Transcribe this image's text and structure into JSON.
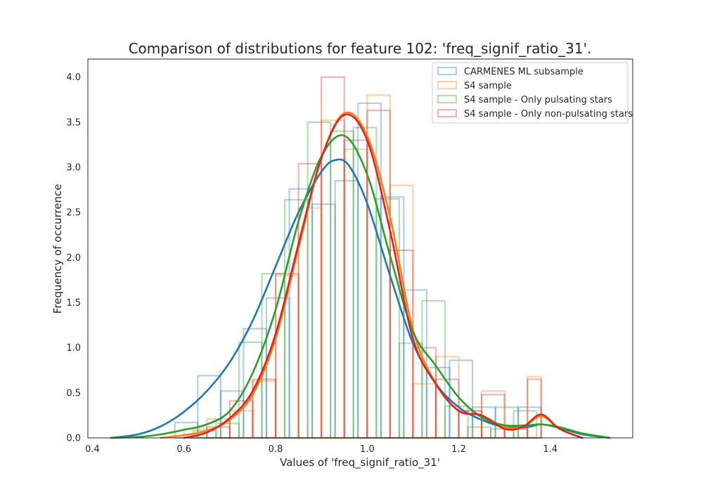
{
  "chart_data": {
    "type": "histogram",
    "title": "Comparison of distributions for feature 102: 'freq_signif_ratio_31'.",
    "xlabel": "Values of 'freq_signif_ratio_31'",
    "ylabel": "Frequency of occurrence",
    "xlim": [
      0.39,
      1.58
    ],
    "ylim": [
      0,
      4.2
    ],
    "xticks": [
      "0.4",
      "0.6",
      "0.8",
      "1.0",
      "1.2",
      "1.4"
    ],
    "yticks": [
      "0.0",
      "0.5",
      "1.0",
      "1.5",
      "2.0",
      "2.5",
      "3.0",
      "3.5",
      "4.0"
    ],
    "grid": false,
    "legend_position": "top-right",
    "series": [
      {
        "name": "CARMENES ML subsample",
        "color": "#1f77b4",
        "hist": {
          "edges": [
            0.58,
            0.63,
            0.68,
            0.73,
            0.78,
            0.83,
            0.88,
            0.93,
            0.98,
            1.03,
            1.08,
            1.13,
            1.18,
            1.23,
            1.28,
            1.33,
            1.38
          ],
          "heights": [
            0.17,
            0.69,
            0.52,
            1.21,
            1.55,
            2.76,
            2.59,
            2.85,
            3.71,
            2.67,
            1.64,
            0.78,
            0.86,
            0.34,
            0.34,
            0.34
          ]
        },
        "kde": {
          "x": [
            0.44,
            0.5,
            0.55,
            0.6,
            0.65,
            0.7,
            0.75,
            0.8,
            0.85,
            0.9,
            0.93,
            0.96,
            1.0,
            1.05,
            1.1,
            1.15,
            1.2,
            1.25,
            1.3,
            1.35,
            1.38,
            1.42,
            1.47,
            1.53
          ],
          "y": [
            0.0,
            0.04,
            0.13,
            0.29,
            0.52,
            0.84,
            1.3,
            1.9,
            2.5,
            2.95,
            3.08,
            3.02,
            2.6,
            1.8,
            1.05,
            0.6,
            0.34,
            0.2,
            0.12,
            0.12,
            0.15,
            0.11,
            0.04,
            0.0
          ]
        }
      },
      {
        "name": "S4 sample",
        "color": "#ff7f0e",
        "hist": {
          "edges": [
            0.6,
            0.65,
            0.7,
            0.75,
            0.8,
            0.85,
            0.9,
            0.95,
            1.0,
            1.05,
            1.1,
            1.15,
            1.2,
            1.25,
            1.3,
            1.35,
            1.38
          ],
          "heights": [
            0.1,
            0.21,
            0.3,
            0.63,
            1.8,
            2.55,
            3.52,
            3.2,
            3.8,
            2.8,
            0.6,
            0.9,
            0.3,
            0.52,
            0.1,
            0.68
          ]
        },
        "kde": {
          "x": [
            0.55,
            0.6,
            0.65,
            0.7,
            0.75,
            0.8,
            0.85,
            0.9,
            0.95,
            1.0,
            1.05,
            1.1,
            1.15,
            1.2,
            1.25,
            1.3,
            1.34,
            1.38,
            1.42,
            1.47
          ],
          "y": [
            0.0,
            0.03,
            0.08,
            0.2,
            0.48,
            1.1,
            2.1,
            3.1,
            3.6,
            3.35,
            2.45,
            1.2,
            0.6,
            0.3,
            0.25,
            0.12,
            0.12,
            0.24,
            0.1,
            0.0
          ]
        }
      },
      {
        "name": "S4 sample - Only pulsating stars",
        "color": "#2ca02c",
        "hist": {
          "edges": [
            0.62,
            0.67,
            0.72,
            0.77,
            0.82,
            0.87,
            0.92,
            0.97,
            1.02,
            1.07,
            1.12,
            1.17,
            1.22,
            1.27,
            1.32,
            1.37
          ],
          "heights": [
            0.08,
            0.16,
            1.06,
            1.82,
            2.64,
            3.5,
            3.4,
            3.44,
            2.65,
            1.05,
            1.52,
            0.35,
            0.12,
            0.1,
            0.3
          ]
        },
        "kde": {
          "x": [
            0.44,
            0.5,
            0.55,
            0.6,
            0.65,
            0.7,
            0.75,
            0.8,
            0.85,
            0.9,
            0.95,
            1.0,
            1.05,
            1.1,
            1.15,
            1.2,
            1.25,
            1.3,
            1.35,
            1.38,
            1.42,
            1.47,
            1.53
          ],
          "y": [
            0.0,
            0.01,
            0.04,
            0.09,
            0.15,
            0.3,
            0.72,
            1.42,
            2.4,
            3.12,
            3.35,
            2.92,
            2.02,
            1.18,
            0.8,
            0.45,
            0.23,
            0.14,
            0.14,
            0.15,
            0.12,
            0.05,
            0.0
          ]
        }
      },
      {
        "name": "S4 sample - Only non-pulsating stars",
        "color": "#d62728",
        "hist": {
          "edges": [
            0.65,
            0.7,
            0.75,
            0.8,
            0.85,
            0.9,
            0.95,
            1.0,
            1.05,
            1.1,
            1.15,
            1.2,
            1.25,
            1.3,
            1.35,
            1.38
          ],
          "heights": [
            0.12,
            0.41,
            0.65,
            1.82,
            3.04,
            4.0,
            3.3,
            3.63,
            2.08,
            1.0,
            0.65,
            0.3,
            0.48,
            0.1,
            0.65
          ]
        },
        "kde": {
          "x": [
            0.6,
            0.65,
            0.7,
            0.75,
            0.8,
            0.85,
            0.9,
            0.95,
            1.0,
            1.05,
            1.1,
            1.15,
            1.2,
            1.25,
            1.3,
            1.34,
            1.38,
            1.42,
            1.47
          ],
          "y": [
            0.0,
            0.06,
            0.22,
            0.52,
            1.15,
            2.15,
            3.1,
            3.58,
            3.3,
            2.3,
            1.1,
            0.6,
            0.3,
            0.25,
            0.1,
            0.12,
            0.26,
            0.1,
            0.0
          ]
        }
      }
    ]
  }
}
